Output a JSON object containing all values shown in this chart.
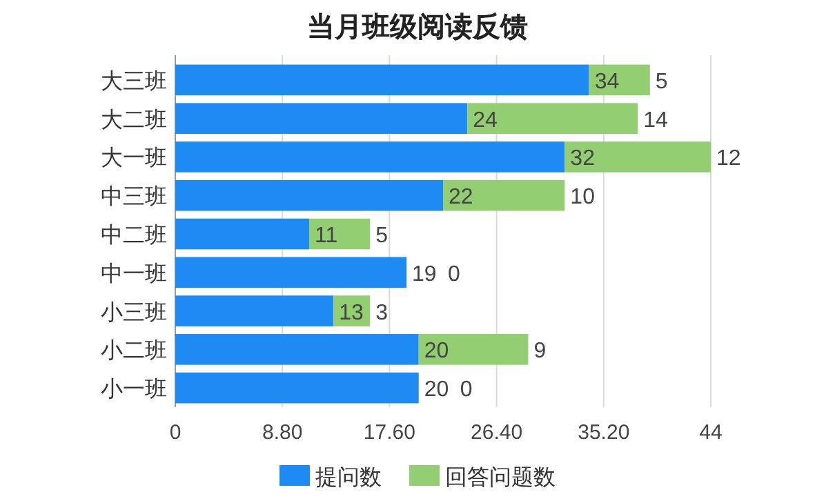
{
  "chart_data": {
    "type": "bar",
    "orientation": "horizontal",
    "stacked": true,
    "title": "当月班级阅读反馈",
    "categories": [
      "大三班",
      "大二班",
      "大一班",
      "中三班",
      "中二班",
      "中一班",
      "小三班",
      "小二班",
      "小一班"
    ],
    "series": [
      {
        "name": "提问数",
        "color": "#1e8bf5",
        "values": [
          34,
          24,
          32,
          22,
          11,
          19,
          13,
          20,
          20
        ]
      },
      {
        "name": "回答问题数",
        "color": "#93cf72",
        "values": [
          5,
          14,
          12,
          10,
          5,
          0,
          3,
          9,
          0
        ]
      }
    ],
    "xlim": [
      0,
      44
    ],
    "xticks": [
      0,
      {
        "value": 8.8,
        "label": "8.80"
      },
      {
        "value": 17.6,
        "label": "17.60"
      },
      {
        "value": 26.4,
        "label": "26.40"
      },
      {
        "value": 35.2,
        "label": "35.20"
      },
      44
    ],
    "grid": "x",
    "legend": "bottom",
    "data_labels": true
  }
}
